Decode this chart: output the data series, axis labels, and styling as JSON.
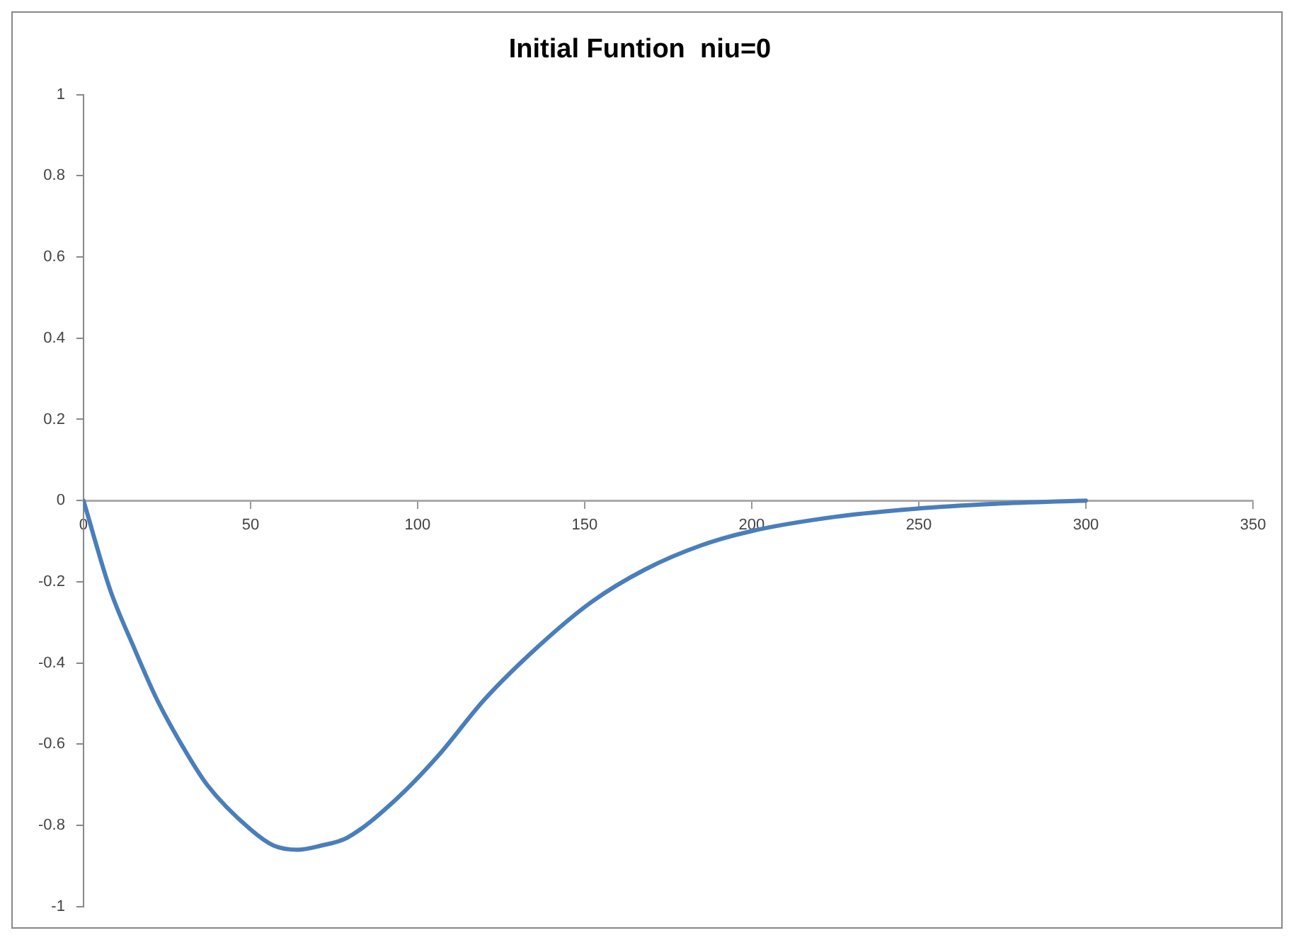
{
  "chart_data": {
    "type": "line",
    "title": "Initial Funtion  niu=0",
    "x": [
      0,
      8,
      15,
      22,
      30,
      37,
      50,
      57,
      64,
      71,
      79,
      93,
      106,
      120,
      136,
      152,
      168,
      185,
      200,
      225,
      249,
      273,
      300
    ],
    "series": [
      {
        "color": "#4a7ebb",
        "values": [
          0,
          -0.22,
          -0.36,
          -0.49,
          -0.61,
          -0.7,
          -0.81,
          -0.85,
          -0.86,
          -0.85,
          -0.83,
          -0.74,
          -0.63,
          -0.49,
          -0.36,
          -0.25,
          -0.17,
          -0.11,
          -0.075,
          -0.04,
          -0.02,
          -0.008,
          0
        ]
      }
    ],
    "xlim": [
      0,
      350
    ],
    "xticks": [
      0,
      50,
      100,
      150,
      200,
      250,
      300,
      350
    ],
    "ylim": [
      -1,
      1
    ],
    "yticks": [
      -1,
      -0.8,
      -0.6,
      -0.4,
      -0.2,
      0,
      0.2,
      0.4,
      0.6,
      0.8,
      1
    ],
    "grid": false,
    "legend": false,
    "marker": "none",
    "line_style": "solid"
  }
}
